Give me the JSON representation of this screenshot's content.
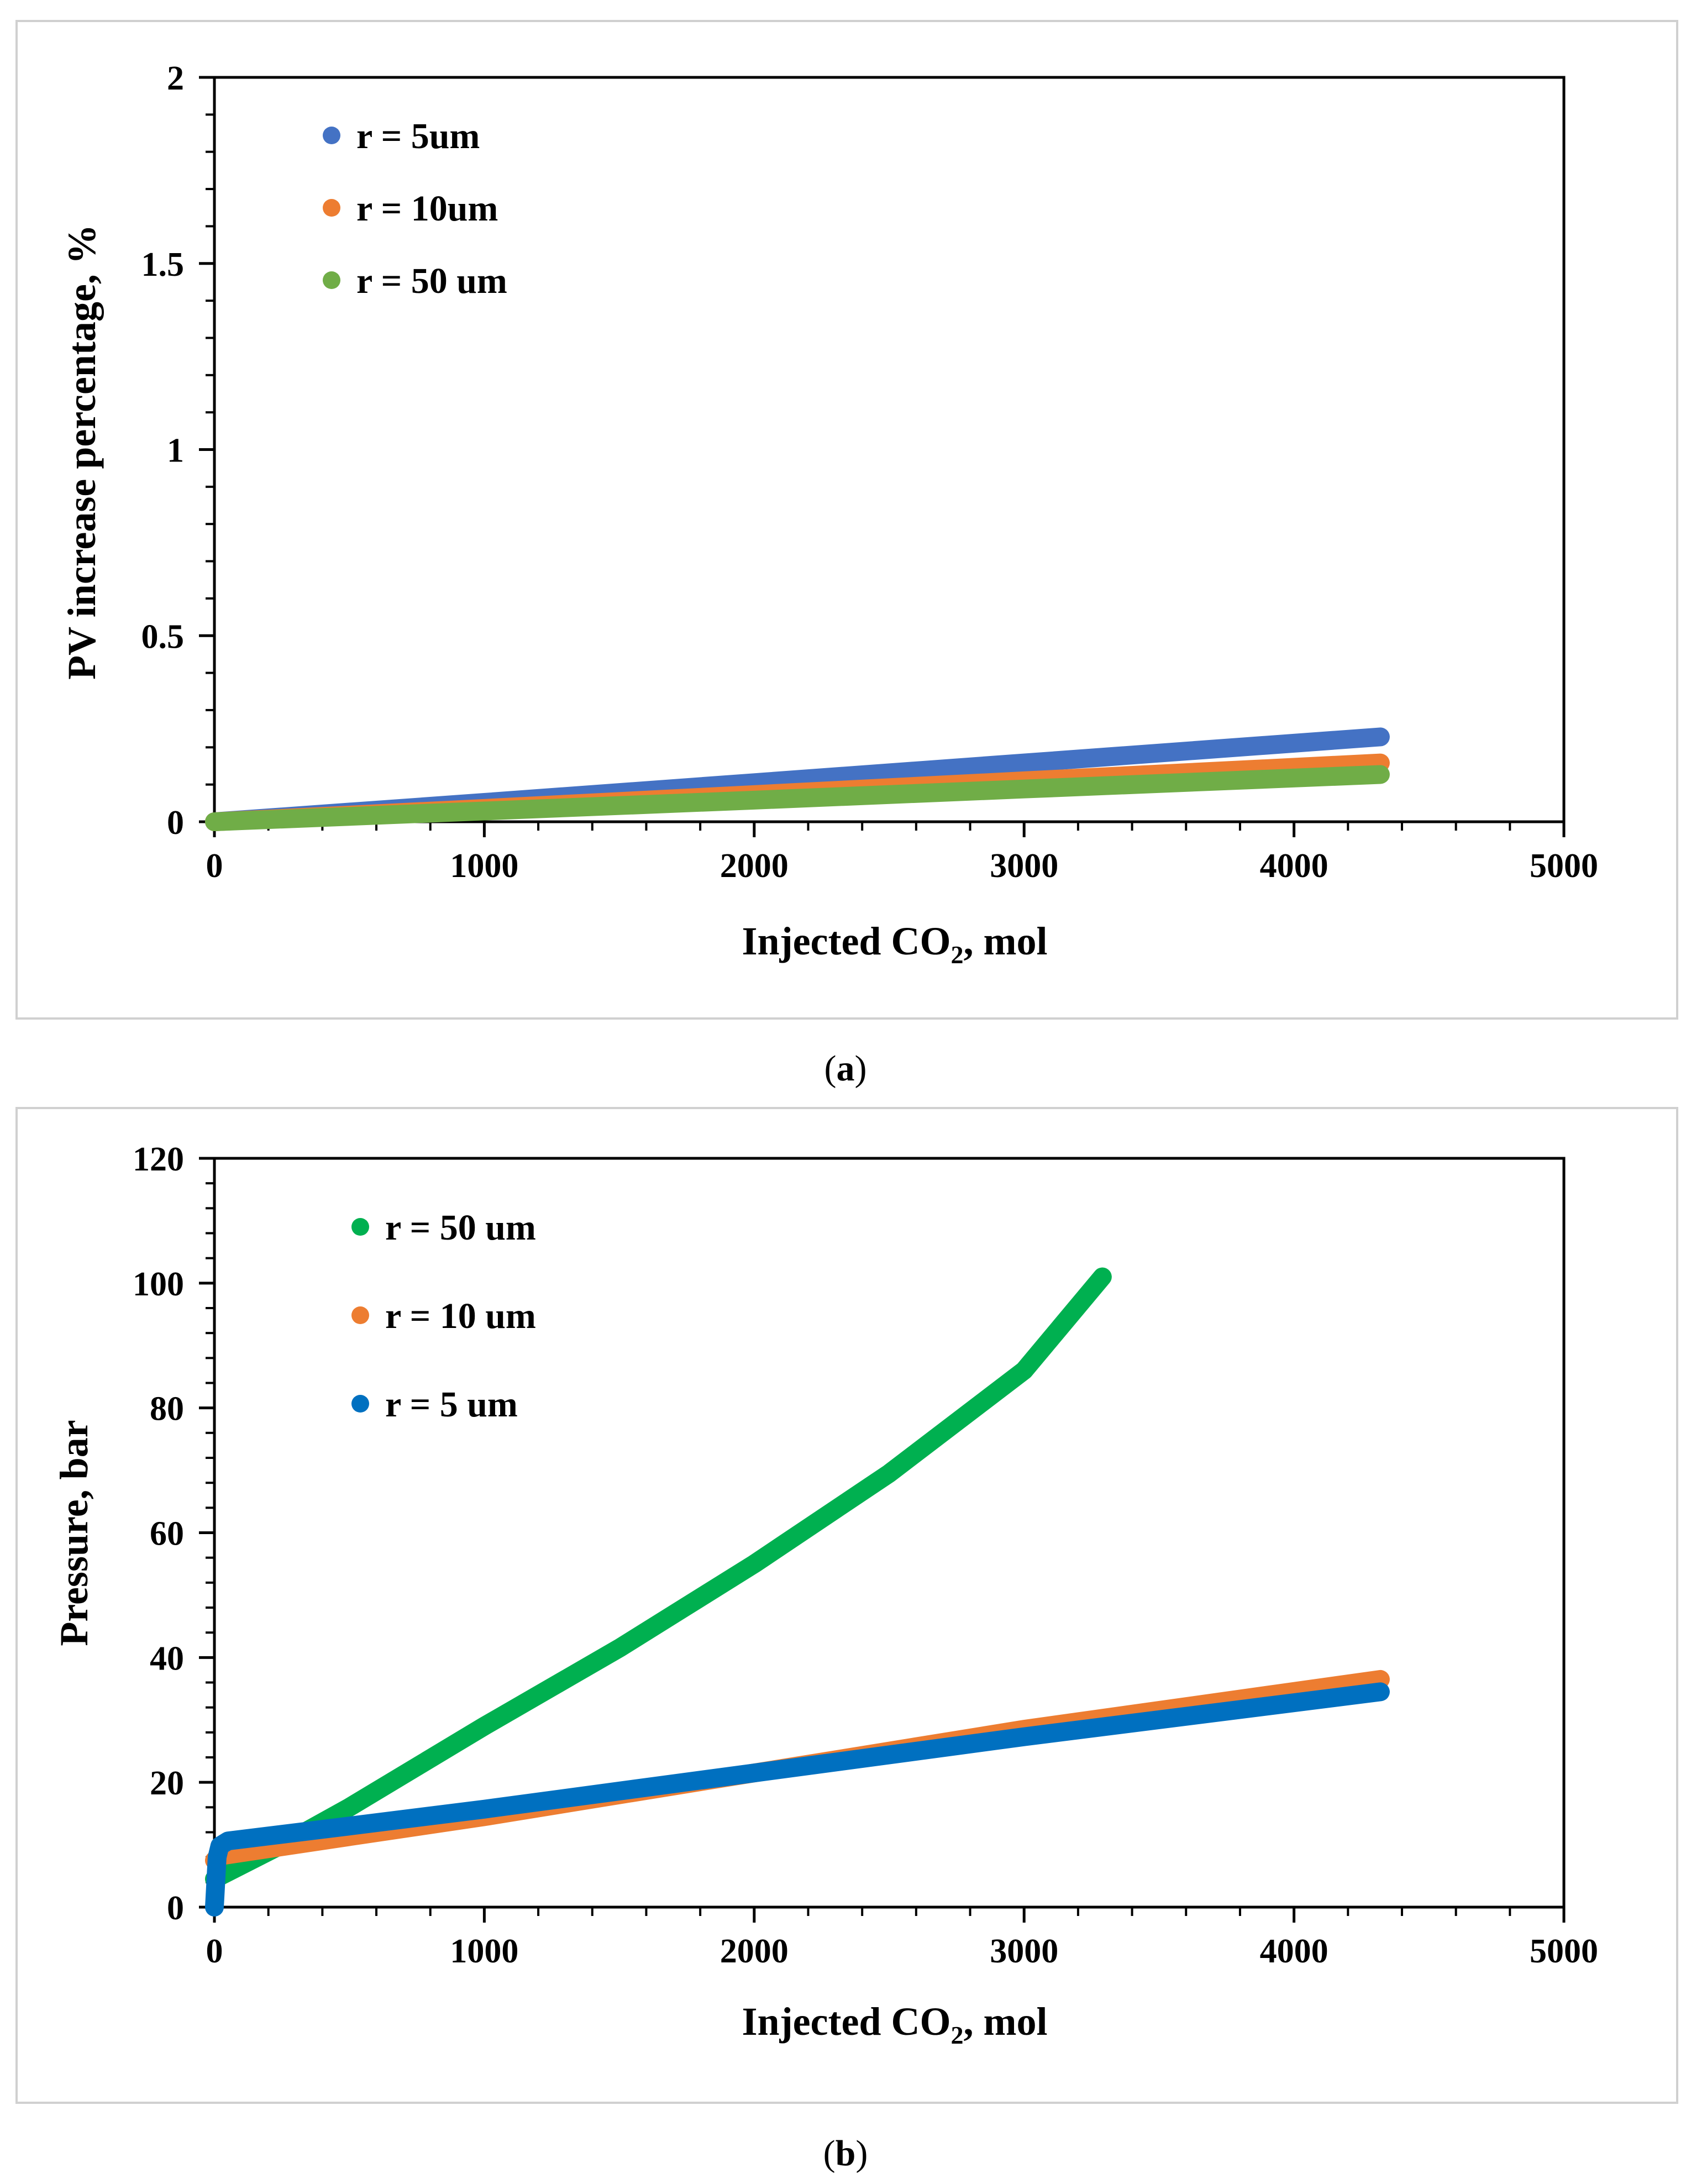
{
  "chart_data": [
    {
      "type": "line",
      "caption": "(a)",
      "caption_letter": "a",
      "xlabel": "Injected CO",
      "xlabel_sub": "2",
      "xlabel_suffix": ", mol",
      "ylabel": "PV increase percentage, %",
      "xlim": [
        0,
        5000
      ],
      "ylim": [
        0,
        2
      ],
      "x_ticks": [
        0,
        1000,
        2000,
        3000,
        4000,
        5000
      ],
      "x_tick_labels": [
        "0",
        "1000",
        "2000",
        "3000",
        "4000",
        "5000"
      ],
      "x_minor_step": 200,
      "y_ticks": [
        0,
        0.5,
        1,
        1.5,
        2
      ],
      "y_tick_labels": [
        "0",
        "0.5",
        "1",
        "1.5",
        "2"
      ],
      "y_minor_step": 0.1,
      "legend_position": "top-left",
      "series": [
        {
          "name": "r = 5um",
          "color": "#4472C4",
          "x": [
            0,
            1000,
            2000,
            3000,
            4320
          ],
          "y": [
            0,
            0.052,
            0.105,
            0.158,
            0.228
          ]
        },
        {
          "name": "r = 10um",
          "color": "#ED7D31",
          "x": [
            0,
            1000,
            2000,
            3000,
            4320
          ],
          "y": [
            0,
            0.036,
            0.073,
            0.11,
            0.158
          ]
        },
        {
          "name": "r = 50 um",
          "color": "#70AD47",
          "x": [
            0,
            1000,
            2000,
            3000,
            4320
          ],
          "y": [
            0,
            0.029,
            0.058,
            0.088,
            0.127
          ]
        }
      ]
    },
    {
      "type": "line",
      "caption": "(b)",
      "caption_letter": "b",
      "xlabel": "Injected CO",
      "xlabel_sub": "2",
      "xlabel_suffix": ", mol",
      "ylabel": "Pressure, bar",
      "xlim": [
        0,
        5000
      ],
      "ylim": [
        0,
        120
      ],
      "x_ticks": [
        0,
        1000,
        2000,
        3000,
        4000,
        5000
      ],
      "x_tick_labels": [
        "0",
        "1000",
        "2000",
        "3000",
        "4000",
        "5000"
      ],
      "x_minor_step": 200,
      "y_ticks": [
        0,
        20,
        40,
        60,
        80,
        100,
        120
      ],
      "y_tick_labels": [
        "0",
        "20",
        "40",
        "60",
        "80",
        "100",
        "120"
      ],
      "y_minor_step": 4,
      "legend_position": "top-left",
      "series": [
        {
          "name": "r = 50 um",
          "color": "#00B050",
          "x": [
            0,
            250,
            500,
            1000,
            1500,
            2000,
            2500,
            3000,
            3290
          ],
          "y": [
            4.5,
            10,
            16,
            29,
            41.5,
            55,
            69.5,
            86,
            101
          ]
        },
        {
          "name": "r = 10 um",
          "color": "#ED7D31",
          "x": [
            0,
            20,
            500,
            1000,
            2000,
            3000,
            4320
          ],
          "y": [
            7.5,
            8.2,
            11.3,
            14.5,
            21.5,
            28.5,
            36.5
          ]
        },
        {
          "name": "r = 5 um",
          "color": "#0070C0",
          "x": [
            0,
            10,
            20,
            50,
            500,
            1000,
            2000,
            3000,
            4320
          ],
          "y": [
            0,
            8,
            9.8,
            10.6,
            13,
            15.7,
            21.5,
            27.3,
            34.5
          ]
        }
      ]
    }
  ]
}
